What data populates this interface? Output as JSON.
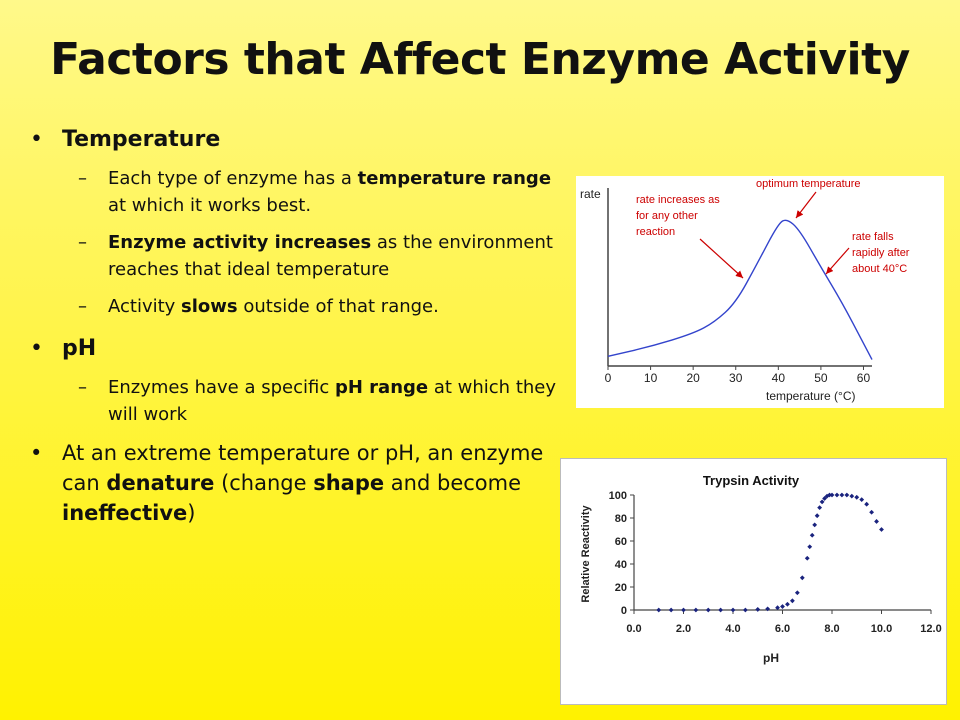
{
  "title": "Factors that Affect Enzyme Activity",
  "temperature": {
    "heading": "Temperature",
    "items": [
      {
        "pre": "Each type of enzyme has a ",
        "bold": "temperature range",
        "post": " at which it works best."
      },
      {
        "pre": "",
        "bold": "Enzyme activity increases",
        "post": " as the environment reaches that ideal temperature"
      },
      {
        "pre": "Activity ",
        "bold": "slows",
        "post": " outside of that range."
      }
    ]
  },
  "ph": {
    "heading": "pH",
    "items": [
      {
        "pre": "Enzymes have a specific ",
        "bold": "pH range",
        "post": " at which they will work"
      }
    ]
  },
  "denature": {
    "t1": "At an extreme  temperature or pH, an enzyme can ",
    "b1": "denature",
    "t2": " (change ",
    "b2": "shape",
    "t3": " and become ",
    "b3": "ineffective",
    "t4": ")"
  },
  "chart_data": [
    {
      "type": "line",
      "title": "",
      "xlabel": "temperature (°C)",
      "ylabel": "rate",
      "x_ticks": [
        "0",
        "10",
        "20",
        "30",
        "40",
        "50",
        "60"
      ],
      "xlim": [
        0,
        62
      ],
      "x": [
        0,
        10,
        20,
        25,
        30,
        35,
        40,
        42,
        45,
        50,
        55,
        60,
        62
      ],
      "y": [
        0.06,
        0.12,
        0.2,
        0.27,
        0.39,
        0.63,
        0.88,
        0.91,
        0.84,
        0.61,
        0.39,
        0.14,
        0.04
      ],
      "annotations": [
        {
          "label": "optimum temperature",
          "color": "#cc0000"
        },
        {
          "label": "rate increases as\nfor any other\nreaction",
          "color": "#cc0000"
        },
        {
          "label": "rate falls\nrapidly after\nabout 40°C",
          "color": "#cc0000"
        }
      ],
      "line_color": "#3344cc"
    },
    {
      "type": "scatter",
      "title": "Trypsin Activity",
      "xlabel": "pH",
      "ylabel": "Relative Reactivity",
      "x_ticks": [
        "0.0",
        "2.0",
        "4.0",
        "6.0",
        "8.0",
        "10.0",
        "12.0"
      ],
      "y_ticks": [
        "0",
        "20",
        "40",
        "60",
        "80",
        "100"
      ],
      "xlim": [
        0,
        12
      ],
      "ylim": [
        0,
        100
      ],
      "x": [
        1.0,
        1.5,
        2.0,
        2.5,
        3.0,
        3.5,
        4.0,
        4.5,
        5.0,
        5.4,
        5.8,
        6.0,
        6.2,
        6.4,
        6.6,
        6.8,
        7.0,
        7.1,
        7.2,
        7.3,
        7.4,
        7.5,
        7.6,
        7.7,
        7.8,
        7.9,
        8.0,
        8.2,
        8.4,
        8.6,
        8.8,
        9.0,
        9.2,
        9.4,
        9.6,
        9.8,
        10.0
      ],
      "y": [
        0,
        0,
        0,
        0,
        0,
        0,
        0,
        0,
        0.5,
        1,
        2,
        3,
        5,
        8,
        15,
        28,
        45,
        55,
        65,
        74,
        82,
        89,
        94,
        97,
        99,
        100,
        100,
        100,
        100,
        100,
        99,
        98,
        96,
        92,
        85,
        77,
        70
      ],
      "marker_color": "#1a237e"
    }
  ]
}
